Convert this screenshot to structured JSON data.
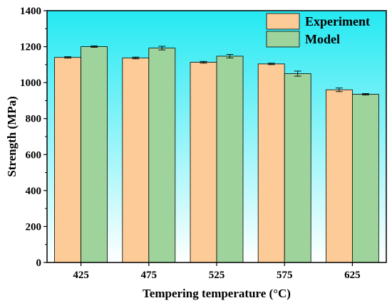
{
  "chart_data": {
    "type": "bar",
    "title": "",
    "xlabel": "Tempering temperature (°C)",
    "ylabel": "Strength (MPa)",
    "ylim": [
      0,
      1400
    ],
    "yticks": [
      0,
      200,
      400,
      600,
      800,
      1000,
      1200,
      1400
    ],
    "categories": [
      "425",
      "475",
      "525",
      "575",
      "625"
    ],
    "series": [
      {
        "name": "Experiment",
        "color": "#fdcb97",
        "values": [
          1140,
          1137,
          1113,
          1104,
          960
        ],
        "errors": [
          4,
          5,
          5,
          4,
          10
        ]
      },
      {
        "name": "Model",
        "color": "#9ed49c",
        "values": [
          1200,
          1192,
          1147,
          1050,
          935
        ],
        "errors": [
          4,
          10,
          10,
          14,
          4
        ]
      }
    ],
    "background_gradient": [
      "#24e9f2",
      "#ffffff"
    ],
    "legend_position": "top-right",
    "grid": false
  }
}
